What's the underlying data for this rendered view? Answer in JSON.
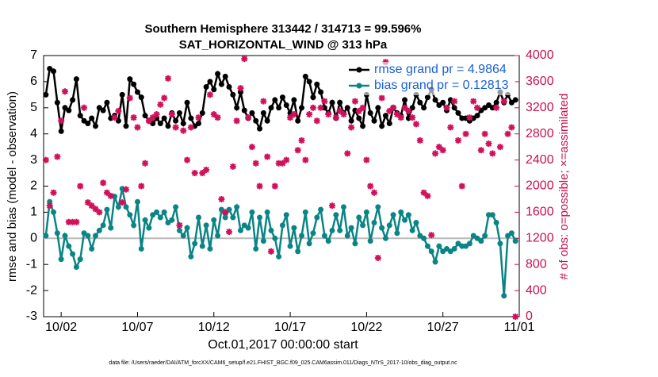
{
  "chart_data": {
    "type": "line",
    "title": "Southern Hemisphere 313442 / 314713 = 99.596%",
    "subtitle": "SAT_HORIZONTAL_WIND @ 313 hPa",
    "xlabel": "Oct.01,2017 00:00:00 start",
    "ylabel": "rmse and bias (model - observation)",
    "y2label": "# of obs: o=possible; ×=assimilated",
    "footnote": "data file: /Users/raeder/DAI/ATM_forcXX/CAM6_setup/f.e21.FHIST_BGC.f09_025.CAM6assim.011/Diags_NTrS_2017-10/obs_diag_output.nc",
    "legend": "upper right",
    "xlim": [
      -0.15,
      31.0
    ],
    "xticks": [
      {
        "value": 1,
        "label": "10/02"
      },
      {
        "value": 6,
        "label": "10/07"
      },
      {
        "value": 11,
        "label": "10/12"
      },
      {
        "value": 16,
        "label": "10/17"
      },
      {
        "value": 21,
        "label": "10/22"
      },
      {
        "value": 26,
        "label": "10/27"
      },
      {
        "value": 31,
        "label": "11/01"
      }
    ],
    "ylim": [
      -3,
      7
    ],
    "yticks": [
      -3,
      -2,
      -1,
      0,
      1,
      2,
      3,
      4,
      5,
      6,
      7
    ],
    "y2lim": [
      0,
      4000
    ],
    "y2ticks": [
      0,
      400,
      800,
      1200,
      1600,
      2000,
      2400,
      2800,
      3200,
      3600,
      4000
    ],
    "y2color": "#c8104f",
    "x": [
      0,
      0.25,
      0.5,
      0.75,
      1,
      1.25,
      1.5,
      1.75,
      2,
      2.25,
      2.5,
      2.75,
      3,
      3.25,
      3.5,
      3.75,
      4,
      4.25,
      4.5,
      4.75,
      5,
      5.25,
      5.5,
      5.75,
      6,
      6.25,
      6.5,
      6.75,
      7,
      7.25,
      7.5,
      7.75,
      8,
      8.25,
      8.5,
      8.75,
      9,
      9.25,
      9.5,
      9.75,
      10,
      10.25,
      10.5,
      10.75,
      11,
      11.25,
      11.5,
      11.75,
      12,
      12.25,
      12.5,
      12.75,
      13,
      13.25,
      13.5,
      13.75,
      14,
      14.25,
      14.5,
      14.75,
      15,
      15.25,
      15.5,
      15.75,
      16,
      16.25,
      16.5,
      16.75,
      17,
      17.25,
      17.5,
      17.75,
      18,
      18.25,
      18.5,
      18.75,
      19,
      19.25,
      19.5,
      19.75,
      20,
      20.25,
      20.5,
      20.75,
      21,
      21.25,
      21.5,
      21.75,
      22,
      22.25,
      22.5,
      22.75,
      23,
      23.25,
      23.5,
      23.75,
      24,
      24.25,
      24.5,
      24.75,
      25,
      25.25,
      25.5,
      25.75,
      26,
      26.25,
      26.5,
      26.75,
      27,
      27.25,
      27.5,
      27.75,
      28,
      28.25,
      28.5,
      28.75,
      29,
      29.25,
      29.5,
      29.75,
      30,
      30.25,
      30.5,
      30.75
    ],
    "series": [
      {
        "name": "rmse grand pr = 4.9864",
        "color": "#000000",
        "values": [
          5.5,
          6.5,
          6.4,
          5.2,
          4.1,
          5.0,
          4.9,
          5.3,
          6.1,
          4.7,
          4.5,
          4.4,
          4.6,
          4.3,
          5.0,
          4.9,
          5.2,
          4.6,
          4.7,
          4.5,
          5.5,
          4.3,
          6.1,
          5.9,
          5.6,
          5.4,
          4.7,
          4.5,
          4.4,
          4.6,
          4.4,
          4.6,
          4.3,
          4.8,
          4.5,
          4.8,
          4.4,
          5.2,
          4.6,
          4.3,
          4.4,
          4.8,
          5.8,
          6.0,
          5.7,
          6.3,
          5.9,
          6.2,
          5.8,
          5.5,
          5.0,
          5.6,
          4.9,
          4.6,
          4.8,
          4.5,
          4.2,
          4.8,
          4.5,
          5.0,
          5.3,
          5.0,
          5.4,
          5.1,
          4.8,
          5.3,
          4.5,
          5.0,
          6.2,
          6.0,
          5.4,
          5.9,
          5.6,
          5.0,
          4.8,
          5.2,
          4.6,
          5.2,
          4.8,
          5.0,
          4.5,
          4.9,
          4.6,
          4.3,
          5.5,
          4.8,
          4.5,
          5.0,
          4.3,
          4.7,
          4.4,
          5.0,
          4.8,
          4.7,
          5.3,
          4.6,
          5.0,
          5.5,
          5.2,
          5.0,
          5.4,
          5.7,
          5.3,
          5.1,
          5.2,
          4.9,
          5.3,
          5.0,
          4.8,
          4.6,
          4.6,
          4.5,
          4.6,
          4.7,
          4.9,
          5.0,
          5.1,
          5.0,
          5.2,
          5.6,
          5.2,
          5.5,
          5.2,
          5.3
        ]
      },
      {
        "name": "bias grand pr = 0.12813",
        "color": "#0a8484",
        "values": [
          0.1,
          1.4,
          1.0,
          0.2,
          -0.8,
          0.1,
          -0.3,
          -0.6,
          -1.1,
          -0.8,
          0.2,
          0.1,
          -0.4,
          0.1,
          0.3,
          0.5,
          1.1,
          0.4,
          1.6,
          1.2,
          1.9,
          1.2,
          0.9,
          0.5,
          1.4,
          -0.4,
          0.7,
          0.4,
          0.9,
          1.0,
          0.8,
          1.0,
          0.6,
          0.7,
          1.2,
          0.3,
          0.1,
          0.4,
          -0.7,
          -0.2,
          0.8,
          -0.3,
          0.5,
          -0.4,
          0.7,
          0.1,
          1.1,
          0.8,
          1.1,
          0.8,
          1.2,
          0.3,
          0.5,
          0.4,
          1.0,
          -0.4,
          0.8,
          -0.1,
          1.0,
          0.3,
          0.0,
          -0.7,
          0.5,
          0.9,
          -0.3,
          0.4,
          -0.5,
          0.1,
          1.0,
          -0.2,
          0.2,
          0.8,
          1.1,
          0.1,
          -0.1,
          0.3,
          0.9,
          0.3,
          1.2,
          0.1,
          0.4,
          -0.2,
          0.8,
          0.5,
          1.0,
          -0.1,
          0.6,
          1.2,
          0.4,
          0.0,
          0.5,
          0.9,
          0.2,
          1.0,
          0.7,
          0.9,
          0.3,
          0.6,
          0.1,
          0.0,
          -0.3,
          -0.5,
          -0.9,
          -0.3,
          -0.5,
          -0.4,
          -0.5,
          -0.4,
          -0.2,
          -0.3,
          -0.3,
          -0.2,
          0.1,
          0.0,
          -0.1,
          0.1,
          0.9,
          0.9,
          0.6,
          -0.2,
          -2.2,
          0.1,
          0.2,
          -0.1
        ]
      },
      {
        "color": "#d0105a",
        "axis": "y2",
        "values": [
          2400,
          1700,
          1900,
          2450,
          3000,
          3450,
          1450,
          1450,
          1450,
          2000,
          3200,
          1750,
          1700,
          1650,
          1600,
          2050,
          1900,
          1850,
          3050,
          3150,
          1750,
          1950,
          3350,
          3050,
          2900,
          2000,
          2350,
          3000,
          3050,
          3100,
          3250,
          3350,
          3650,
          3100,
          2900,
          1400,
          2850,
          2400,
          2900,
          2200,
          3050,
          2200,
          2250,
          3400,
          3100,
          3050,
          1800,
          1600,
          1300,
          2300,
          3000,
          3500,
          3950,
          3050,
          2600,
          2350,
          2000,
          3300,
          2450,
          1000,
          2000,
          2350,
          2350,
          2400,
          3050,
          3100,
          2550,
          2700,
          2400,
          3100,
          3200,
          3000,
          3200,
          3300,
          3100,
          1700,
          3050,
          3150,
          3100,
          2500,
          2900,
          3300,
          3150,
          3200,
          2400,
          2000,
          1900,
          900,
          3350,
          3900,
          3150,
          3200,
          3100,
          3050,
          3200,
          3150,
          3050,
          2950,
          2700,
          1900,
          1850,
          1250,
          2500,
          2600,
          2550,
          3200,
          2900,
          3300,
          2700,
          2000,
          2800,
          3050,
          3300,
          3200,
          2550,
          2800,
          2650,
          2500,
          3200,
          2600,
          3300,
          2800,
          2900,
          0
        ]
      }
    ]
  }
}
